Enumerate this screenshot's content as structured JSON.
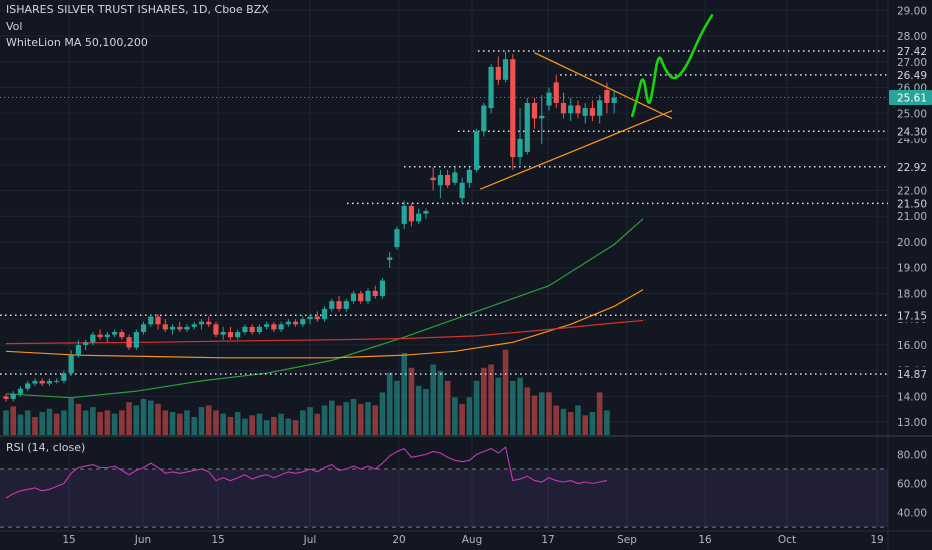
{
  "legend": {
    "title": "ISHARES SILVER TRUST ISHARES, 1D, Cboe BZX",
    "vol": "Vol",
    "ma": "WhiteLion MA 50,100,200"
  },
  "rsi_label": "RSI (14, close)",
  "colors": {
    "background": "#131722",
    "up": "#26a69a",
    "down": "#ef5350",
    "ma50": "#2e9e3a",
    "ma100": "#f7931a",
    "ma200": "#d0322c",
    "trendline": "#f7931a",
    "projection": "#17d40b",
    "rsi": "#c837b7",
    "price_badge": "#26a69a"
  },
  "chart_data": [
    {
      "type": "candlestick",
      "title": "ISHARES SILVER TRUST ISHARES, 1D, Cboe BZX",
      "x_tick_labels": [
        "15",
        "Jun",
        "15",
        "Jul",
        "20",
        "Aug",
        "17",
        "Sep",
        "16",
        "Oct",
        "19"
      ],
      "y_ticks": [
        13,
        14,
        15,
        16,
        17,
        18,
        19,
        20,
        21,
        22,
        23,
        24,
        25,
        26,
        27,
        28,
        29
      ],
      "y_tick_labels": [
        "13.00",
        "14.00",
        "15.00",
        "16.00",
        "17.00",
        "18.00",
        "19.00",
        "20.00",
        "21.00",
        "22.00",
        "23.00",
        "24.00",
        "25.00",
        "26.00",
        "27.00",
        "28.00",
        "29.00"
      ],
      "ylim": [
        12.5,
        29.4
      ],
      "last_price": 25.61,
      "horizontal_levels": [
        27.42,
        26.49,
        24.3,
        22.92,
        21.5,
        17.15,
        14.87
      ],
      "level_labels": [
        "27.42",
        "26.49",
        "24.30",
        "22.92",
        "21.50",
        "17.15",
        "14.87"
      ],
      "last_price_label": "25.61",
      "candles": [
        [
          14.0,
          14.1,
          13.8,
          13.9
        ],
        [
          13.9,
          14.2,
          13.8,
          14.1
        ],
        [
          14.1,
          14.4,
          14.0,
          14.3
        ],
        [
          14.3,
          14.6,
          14.2,
          14.5
        ],
        [
          14.5,
          14.7,
          14.4,
          14.6
        ],
        [
          14.6,
          14.7,
          14.4,
          14.5
        ],
        [
          14.5,
          14.7,
          14.4,
          14.6
        ],
        [
          14.6,
          14.7,
          14.5,
          14.6
        ],
        [
          14.6,
          15.0,
          14.5,
          14.9
        ],
        [
          14.9,
          15.8,
          14.8,
          15.6
        ],
        [
          15.6,
          16.2,
          15.5,
          16.0
        ],
        [
          16.0,
          16.2,
          15.8,
          16.1
        ],
        [
          16.1,
          16.5,
          16.0,
          16.4
        ],
        [
          16.4,
          16.6,
          16.2,
          16.3
        ],
        [
          16.3,
          16.5,
          16.1,
          16.4
        ],
        [
          16.4,
          16.6,
          16.3,
          16.5
        ],
        [
          16.5,
          16.6,
          16.2,
          16.3
        ],
        [
          16.3,
          16.4,
          15.8,
          15.9
        ],
        [
          15.9,
          16.6,
          15.8,
          16.5
        ],
        [
          16.5,
          16.9,
          16.4,
          16.8
        ],
        [
          16.8,
          17.2,
          16.7,
          17.1
        ],
        [
          17.1,
          17.2,
          16.6,
          16.8
        ],
        [
          16.8,
          17.0,
          16.5,
          16.6
        ],
        [
          16.6,
          16.8,
          16.4,
          16.7
        ],
        [
          16.7,
          16.9,
          16.5,
          16.6
        ],
        [
          16.6,
          16.8,
          16.5,
          16.7
        ],
        [
          16.7,
          16.9,
          16.6,
          16.8
        ],
        [
          16.8,
          17.0,
          16.6,
          16.9
        ],
        [
          16.9,
          17.1,
          16.7,
          16.8
        ],
        [
          16.8,
          16.9,
          16.3,
          16.4
        ],
        [
          16.4,
          16.7,
          16.2,
          16.5
        ],
        [
          16.5,
          16.7,
          16.2,
          16.3
        ],
        [
          16.3,
          16.6,
          16.2,
          16.5
        ],
        [
          16.5,
          16.8,
          16.4,
          16.7
        ],
        [
          16.7,
          16.8,
          16.4,
          16.5
        ],
        [
          16.5,
          16.8,
          16.4,
          16.7
        ],
        [
          16.7,
          16.9,
          16.6,
          16.8
        ],
        [
          16.8,
          16.9,
          16.5,
          16.6
        ],
        [
          16.6,
          16.9,
          16.5,
          16.8
        ],
        [
          16.8,
          17.0,
          16.7,
          16.9
        ],
        [
          16.9,
          17.0,
          16.7,
          16.8
        ],
        [
          16.8,
          17.1,
          16.7,
          17.0
        ],
        [
          17.0,
          17.2,
          16.8,
          17.1
        ],
        [
          17.1,
          17.3,
          16.9,
          17.0
        ],
        [
          17.0,
          17.5,
          16.9,
          17.4
        ],
        [
          17.4,
          17.8,
          17.3,
          17.7
        ],
        [
          17.7,
          17.9,
          17.3,
          17.4
        ],
        [
          17.4,
          17.8,
          17.3,
          17.7
        ],
        [
          17.7,
          18.1,
          17.6,
          18.0
        ],
        [
          18.0,
          18.1,
          17.6,
          17.7
        ],
        [
          17.7,
          18.2,
          17.6,
          18.1
        ],
        [
          18.1,
          18.3,
          17.8,
          17.9
        ],
        [
          17.9,
          18.6,
          17.8,
          18.5
        ],
        [
          19.3,
          19.6,
          19.0,
          19.4
        ],
        [
          19.8,
          20.6,
          19.7,
          20.5
        ],
        [
          20.7,
          21.6,
          20.5,
          21.4
        ],
        [
          21.4,
          21.5,
          20.6,
          20.8
        ],
        [
          20.8,
          21.3,
          20.7,
          21.1
        ],
        [
          21.1,
          21.3,
          20.9,
          21.2
        ],
        [
          22.5,
          22.9,
          22.0,
          22.4
        ],
        [
          22.2,
          22.8,
          21.7,
          22.6
        ],
        [
          22.6,
          22.8,
          22.1,
          22.2
        ],
        [
          22.3,
          22.9,
          22.2,
          22.7
        ],
        [
          21.7,
          22.5,
          21.5,
          22.3
        ],
        [
          22.3,
          22.9,
          22.1,
          22.8
        ],
        [
          22.8,
          24.4,
          22.7,
          24.3
        ],
        [
          24.3,
          25.4,
          24.1,
          25.3
        ],
        [
          25.2,
          26.9,
          25.0,
          26.8
        ],
        [
          26.8,
          27.2,
          26.1,
          26.3
        ],
        [
          26.3,
          27.4,
          26.2,
          27.1
        ],
        [
          27.1,
          27.3,
          22.8,
          23.3
        ],
        [
          23.3,
          25.2,
          23.0,
          24.0
        ],
        [
          23.5,
          25.6,
          23.4,
          25.4
        ],
        [
          25.4,
          25.6,
          24.4,
          24.8
        ],
        [
          24.8,
          25.7,
          23.8,
          24.9
        ],
        [
          25.3,
          26.0,
          25.1,
          25.8
        ],
        [
          26.2,
          26.5,
          25.2,
          25.4
        ],
        [
          25.4,
          25.8,
          24.8,
          25.0
        ],
        [
          25.0,
          25.6,
          24.7,
          25.3
        ],
        [
          25.3,
          25.5,
          24.8,
          25.0
        ],
        [
          24.9,
          25.4,
          24.6,
          25.2
        ],
        [
          25.2,
          25.5,
          24.7,
          24.9
        ],
        [
          24.9,
          25.7,
          24.6,
          25.5
        ],
        [
          25.9,
          26.2,
          25.0,
          25.4
        ],
        [
          25.4,
          25.9,
          25.0,
          25.61
        ]
      ],
      "volumes": [
        [
          0.3,
          1
        ],
        [
          0.35,
          0
        ],
        [
          0.25,
          1
        ],
        [
          0.3,
          1
        ],
        [
          0.22,
          0
        ],
        [
          0.28,
          1
        ],
        [
          0.32,
          1
        ],
        [
          0.26,
          0
        ],
        [
          0.3,
          1
        ],
        [
          0.45,
          1
        ],
        [
          0.38,
          0
        ],
        [
          0.3,
          1
        ],
        [
          0.34,
          1
        ],
        [
          0.28,
          0
        ],
        [
          0.3,
          0
        ],
        [
          0.26,
          1
        ],
        [
          0.3,
          0
        ],
        [
          0.4,
          0
        ],
        [
          0.36,
          1
        ],
        [
          0.44,
          1
        ],
        [
          0.42,
          1
        ],
        [
          0.38,
          0
        ],
        [
          0.3,
          0
        ],
        [
          0.28,
          1
        ],
        [
          0.26,
          0
        ],
        [
          0.3,
          1
        ],
        [
          0.22,
          1
        ],
        [
          0.34,
          1
        ],
        [
          0.36,
          0
        ],
        [
          0.3,
          0
        ],
        [
          0.26,
          1
        ],
        [
          0.22,
          0
        ],
        [
          0.28,
          1
        ],
        [
          0.2,
          1
        ],
        [
          0.24,
          0
        ],
        [
          0.26,
          1
        ],
        [
          0.18,
          1
        ],
        [
          0.22,
          0
        ],
        [
          0.26,
          1
        ],
        [
          0.2,
          1
        ],
        [
          0.18,
          0
        ],
        [
          0.3,
          1
        ],
        [
          0.34,
          1
        ],
        [
          0.26,
          0
        ],
        [
          0.36,
          1
        ],
        [
          0.42,
          1
        ],
        [
          0.36,
          0
        ],
        [
          0.4,
          1
        ],
        [
          0.44,
          1
        ],
        [
          0.38,
          0
        ],
        [
          0.4,
          1
        ],
        [
          0.36,
          0
        ],
        [
          0.52,
          1
        ],
        [
          0.76,
          1
        ],
        [
          0.66,
          1
        ],
        [
          1.0,
          1
        ],
        [
          0.82,
          0
        ],
        [
          0.6,
          1
        ],
        [
          0.56,
          1
        ],
        [
          0.86,
          1
        ],
        [
          0.78,
          1
        ],
        [
          0.66,
          0
        ],
        [
          0.46,
          1
        ],
        [
          0.38,
          0
        ],
        [
          0.46,
          1
        ],
        [
          0.66,
          1
        ],
        [
          0.82,
          0
        ],
        [
          0.86,
          0
        ],
        [
          0.7,
          1
        ],
        [
          1.04,
          0
        ],
        [
          0.66,
          1
        ],
        [
          0.7,
          1
        ],
        [
          0.58,
          0
        ],
        [
          0.48,
          0
        ],
        [
          0.52,
          1
        ],
        [
          0.52,
          0
        ],
        [
          0.36,
          0
        ],
        [
          0.32,
          1
        ],
        [
          0.28,
          0
        ],
        [
          0.36,
          1
        ],
        [
          0.24,
          0
        ],
        [
          0.28,
          1
        ],
        [
          0.52,
          0
        ],
        [
          0.3,
          1
        ]
      ],
      "ma_series": [
        {
          "name": "MA 50",
          "points": [
            [
              0,
              14.1
            ],
            [
              9,
              13.95
            ],
            [
              18,
              14.2
            ],
            [
              27,
              14.6
            ],
            [
              36,
              14.9
            ],
            [
              45,
              15.4
            ],
            [
              55,
              16.3
            ],
            [
              65,
              17.3
            ],
            [
              75,
              18.3
            ],
            [
              84,
              19.9
            ],
            [
              88,
              20.9
            ]
          ]
        },
        {
          "name": "MA 100",
          "points": [
            [
              0,
              15.75
            ],
            [
              10,
              15.6
            ],
            [
              20,
              15.55
            ],
            [
              30,
              15.5
            ],
            [
              45,
              15.5
            ],
            [
              55,
              15.6
            ],
            [
              62,
              15.75
            ],
            [
              70,
              16.1
            ],
            [
              78,
              16.8
            ],
            [
              84,
              17.5
            ],
            [
              88,
              18.15
            ]
          ]
        },
        {
          "name": "MA 200",
          "points": [
            [
              0,
              16.05
            ],
            [
              10,
              16.08
            ],
            [
              20,
              16.1
            ],
            [
              30,
              16.15
            ],
            [
              45,
              16.2
            ],
            [
              55,
              16.25
            ],
            [
              65,
              16.35
            ],
            [
              75,
              16.6
            ],
            [
              84,
              16.85
            ],
            [
              88,
              16.95
            ]
          ]
        }
      ],
      "trendlines": [
        [
          [
            65.5,
            22.05
          ],
          [
            92.0,
            25.1
          ]
        ],
        [
          [
            73.0,
            27.35
          ],
          [
            92.0,
            24.8
          ]
        ]
      ],
      "projection": [
        [
          86.5,
          24.9
        ],
        [
          87.2,
          25.6
        ],
        [
          88.0,
          26.6
        ],
        [
          88.7,
          25.2
        ],
        [
          89.3,
          25.8
        ],
        [
          90.1,
          27.4
        ],
        [
          91.0,
          26.7
        ],
        [
          92.3,
          26.25
        ],
        [
          94.0,
          26.8
        ],
        [
          96.0,
          28.1
        ],
        [
          97.5,
          28.8
        ]
      ]
    },
    {
      "type": "line",
      "title": "RSI (14, close)",
      "y_ticks": [
        40,
        60,
        80
      ],
      "y_tick_labels": [
        "40.00",
        "60.00",
        "80.00"
      ],
      "ylim": [
        28,
        92
      ],
      "bands": [
        30,
        70
      ],
      "values": [
        50,
        53,
        55,
        56,
        57,
        55,
        56,
        58,
        60,
        67,
        71,
        72,
        73,
        71,
        71,
        72,
        69,
        66,
        69,
        71,
        74,
        71,
        67,
        68,
        67,
        68,
        69,
        70,
        68,
        62,
        64,
        62,
        64,
        66,
        63,
        65,
        66,
        64,
        66,
        68,
        67,
        68,
        70,
        68,
        71,
        73,
        69,
        70,
        72,
        70,
        72,
        70,
        74,
        79,
        82,
        84,
        78,
        79,
        80,
        82,
        81,
        78,
        76,
        75,
        76,
        80,
        82,
        84,
        81,
        85,
        62,
        63,
        65,
        62,
        61,
        64,
        62,
        61,
        62,
        60,
        61,
        60,
        61,
        62
      ]
    }
  ]
}
